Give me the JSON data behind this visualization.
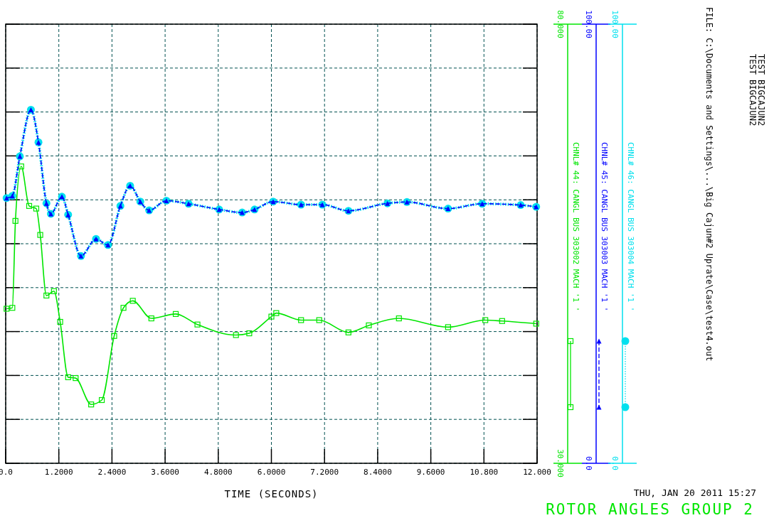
{
  "chart_data": {
    "type": "line",
    "title": "ROTOR ANGLES GROUP 2",
    "xlabel": "TIME (SECONDS)",
    "annotations": [
      "THU, JAN 20 2011   15:27",
      "TEST BIGCAJUN2",
      "TEST BIGCAJUN2",
      "FILE: C:\\Documents and Settings\\...\\Big Cajun#2 Uprate\\Case\\test4.out"
    ],
    "xlim": [
      0,
      12
    ],
    "xticks": [
      {
        "value": 0,
        "label": "0.0"
      },
      {
        "value": 1.2,
        "label": "1.2000"
      },
      {
        "value": 2.4,
        "label": "2.4000"
      },
      {
        "value": 3.6,
        "label": "3.6000"
      },
      {
        "value": 4.8,
        "label": "4.8000"
      },
      {
        "value": 6,
        "label": "6.0000"
      },
      {
        "value": 7.2,
        "label": "7.2000"
      },
      {
        "value": 8.4,
        "label": "8.4000"
      },
      {
        "value": 9.6,
        "label": "9.6000"
      },
      {
        "value": 10.8,
        "label": "10.800"
      },
      {
        "value": 12,
        "label": "12.000"
      }
    ],
    "ylim": [
      30,
      80
    ],
    "yticks": [
      {
        "value": 30,
        "label": "30.000"
      },
      {
        "value": 35,
        "label": null
      },
      {
        "value": 40,
        "label": null
      },
      {
        "value": 45,
        "label": null
      },
      {
        "value": 50,
        "label": null
      },
      {
        "value": 55,
        "label": null
      },
      {
        "value": 60,
        "label": null
      },
      {
        "value": 65,
        "label": null
      },
      {
        "value": 70,
        "label": null
      },
      {
        "value": 75,
        "label": null
      },
      {
        "value": 80,
        "label": "80.000"
      }
    ],
    "y2lim": [
      0,
      100
    ],
    "y2ticks": [
      {
        "value": 0,
        "label": "0.0"
      },
      {
        "value": 100,
        "label": "100.00"
      }
    ],
    "y3lim": [
      0,
      100
    ],
    "y3ticks": [
      {
        "value": 0,
        "label": "0.0"
      },
      {
        "value": 100,
        "label": "100.00"
      }
    ],
    "grid": true,
    "legend": "right",
    "series": [
      {
        "name": "CHNL# 44: CANGL BUS 303002 MACH '1 '",
        "color": "#00e600",
        "marker": "square",
        "line_style": "solid",
        "x": [
          0.02,
          0.15,
          0.22,
          0.35,
          0.53,
          0.69,
          0.78,
          0.92,
          1.09,
          1.23,
          1.41,
          1.58,
          1.93,
          2.17,
          2.45,
          2.66,
          2.87,
          3.29,
          3.84,
          4.33,
          5.2,
          5.5,
          6.0,
          6.11,
          6.67,
          7.08,
          7.74,
          8.2,
          8.88,
          9.99,
          10.83,
          11.21,
          11.98
        ],
        "values": [
          47.6,
          47.7,
          57.6,
          63.8,
          59.3,
          59.0,
          56.0,
          49.1,
          49.6,
          46.1,
          39.8,
          39.7,
          36.7,
          37.2,
          44.5,
          47.7,
          48.5,
          46.5,
          47.0,
          45.8,
          44.6,
          44.8,
          46.7,
          47.1,
          46.3,
          46.3,
          44.9,
          45.7,
          46.5,
          45.5,
          46.3,
          46.2,
          45.9
        ]
      },
      {
        "name": "CHNL# 46: CANGL BUS 303004 MACH '1 '",
        "color": "#00e0ee",
        "marker": "circle",
        "line_style": "dotted",
        "axis": "y3",
        "x": [
          0.02,
          0.15,
          0.32,
          0.57,
          0.74,
          0.92,
          1.02,
          1.27,
          1.41,
          1.7,
          2.04,
          2.31,
          2.59,
          2.81,
          3.04,
          3.24,
          3.63,
          4.13,
          4.82,
          5.34,
          5.62,
          6.04,
          6.67,
          7.15,
          7.74,
          8.62,
          9.06,
          9.99,
          10.76,
          11.63,
          11.98
        ],
        "values": [
          60.4,
          60.9,
          69.9,
          80.5,
          73.1,
          59.2,
          56.8,
          60.7,
          56.6,
          47.2,
          51.1,
          49.7,
          58.6,
          63.2,
          59.6,
          57.6,
          59.8,
          59.1,
          57.8,
          57.1,
          57.8,
          59.6,
          58.9,
          58.9,
          57.5,
          59.2,
          59.5,
          58.0,
          59.1,
          58.8,
          58.4
        ]
      },
      {
        "name": "CHNL# 45: CANGL BUS 303003 MACH '1 '",
        "color": "#0000ff",
        "marker": "triangle",
        "line_style": "dashed",
        "axis": "y2",
        "x": [
          0.02,
          0.15,
          0.32,
          0.57,
          0.74,
          0.92,
          1.02,
          1.27,
          1.41,
          1.7,
          2.04,
          2.31,
          2.59,
          2.81,
          3.04,
          3.24,
          3.63,
          4.13,
          4.82,
          5.34,
          5.62,
          6.04,
          6.67,
          7.15,
          7.74,
          8.62,
          9.06,
          9.99,
          10.76,
          11.63,
          11.98
        ],
        "values": [
          60.4,
          60.9,
          69.9,
          80.5,
          73.1,
          59.2,
          56.8,
          60.7,
          56.6,
          47.2,
          51.1,
          49.7,
          58.6,
          63.2,
          59.6,
          57.6,
          59.8,
          59.1,
          57.8,
          57.1,
          57.8,
          59.6,
          58.9,
          58.9,
          57.5,
          59.2,
          59.5,
          58.0,
          59.1,
          58.8,
          58.4
        ]
      }
    ]
  }
}
